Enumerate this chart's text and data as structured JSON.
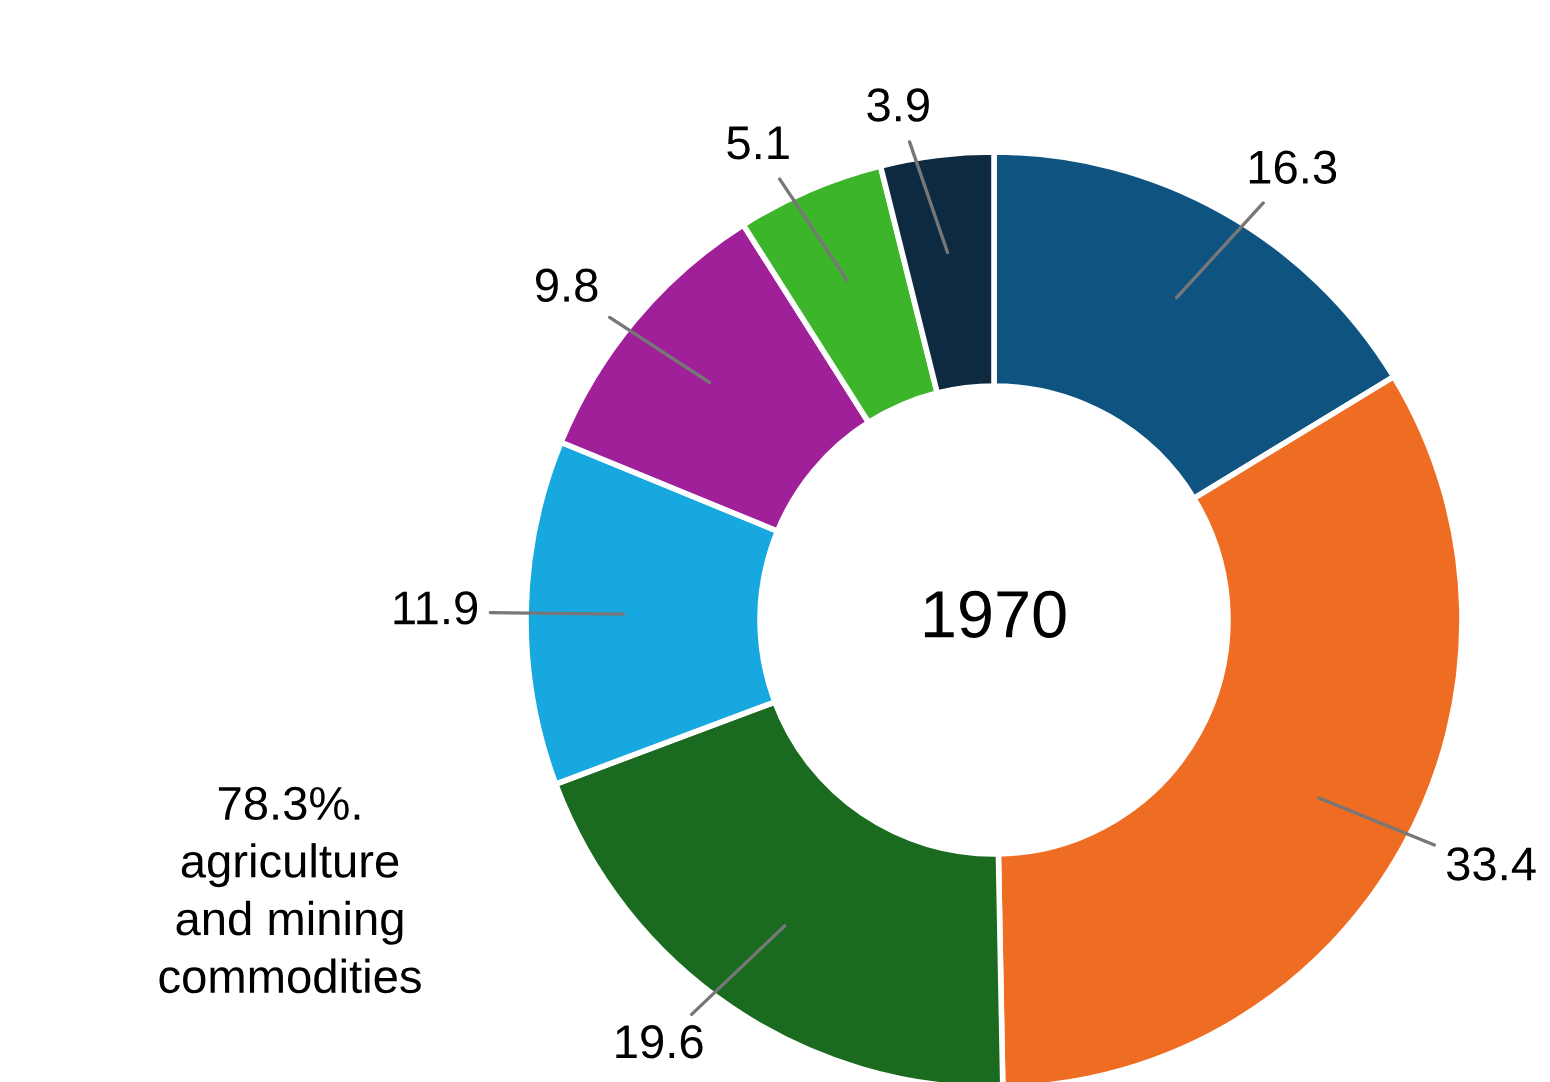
{
  "chart_data": {
    "type": "donut",
    "title": "1970",
    "categories": [
      null,
      null,
      null,
      null,
      null,
      null,
      null
    ],
    "values": [
      16.3,
      33.4,
      19.6,
      11.9,
      9.8,
      5.1,
      3.9
    ],
    "colors": [
      "#0f5480",
      "#ef6c23",
      "#1a6b1f",
      "#18a8e0",
      "#a0209a",
      "#3db52a",
      "#0e2a40"
    ],
    "data_labels": true,
    "annotations": [
      "78.3%.\nagriculture\nand mining\ncommodities"
    ]
  }
}
